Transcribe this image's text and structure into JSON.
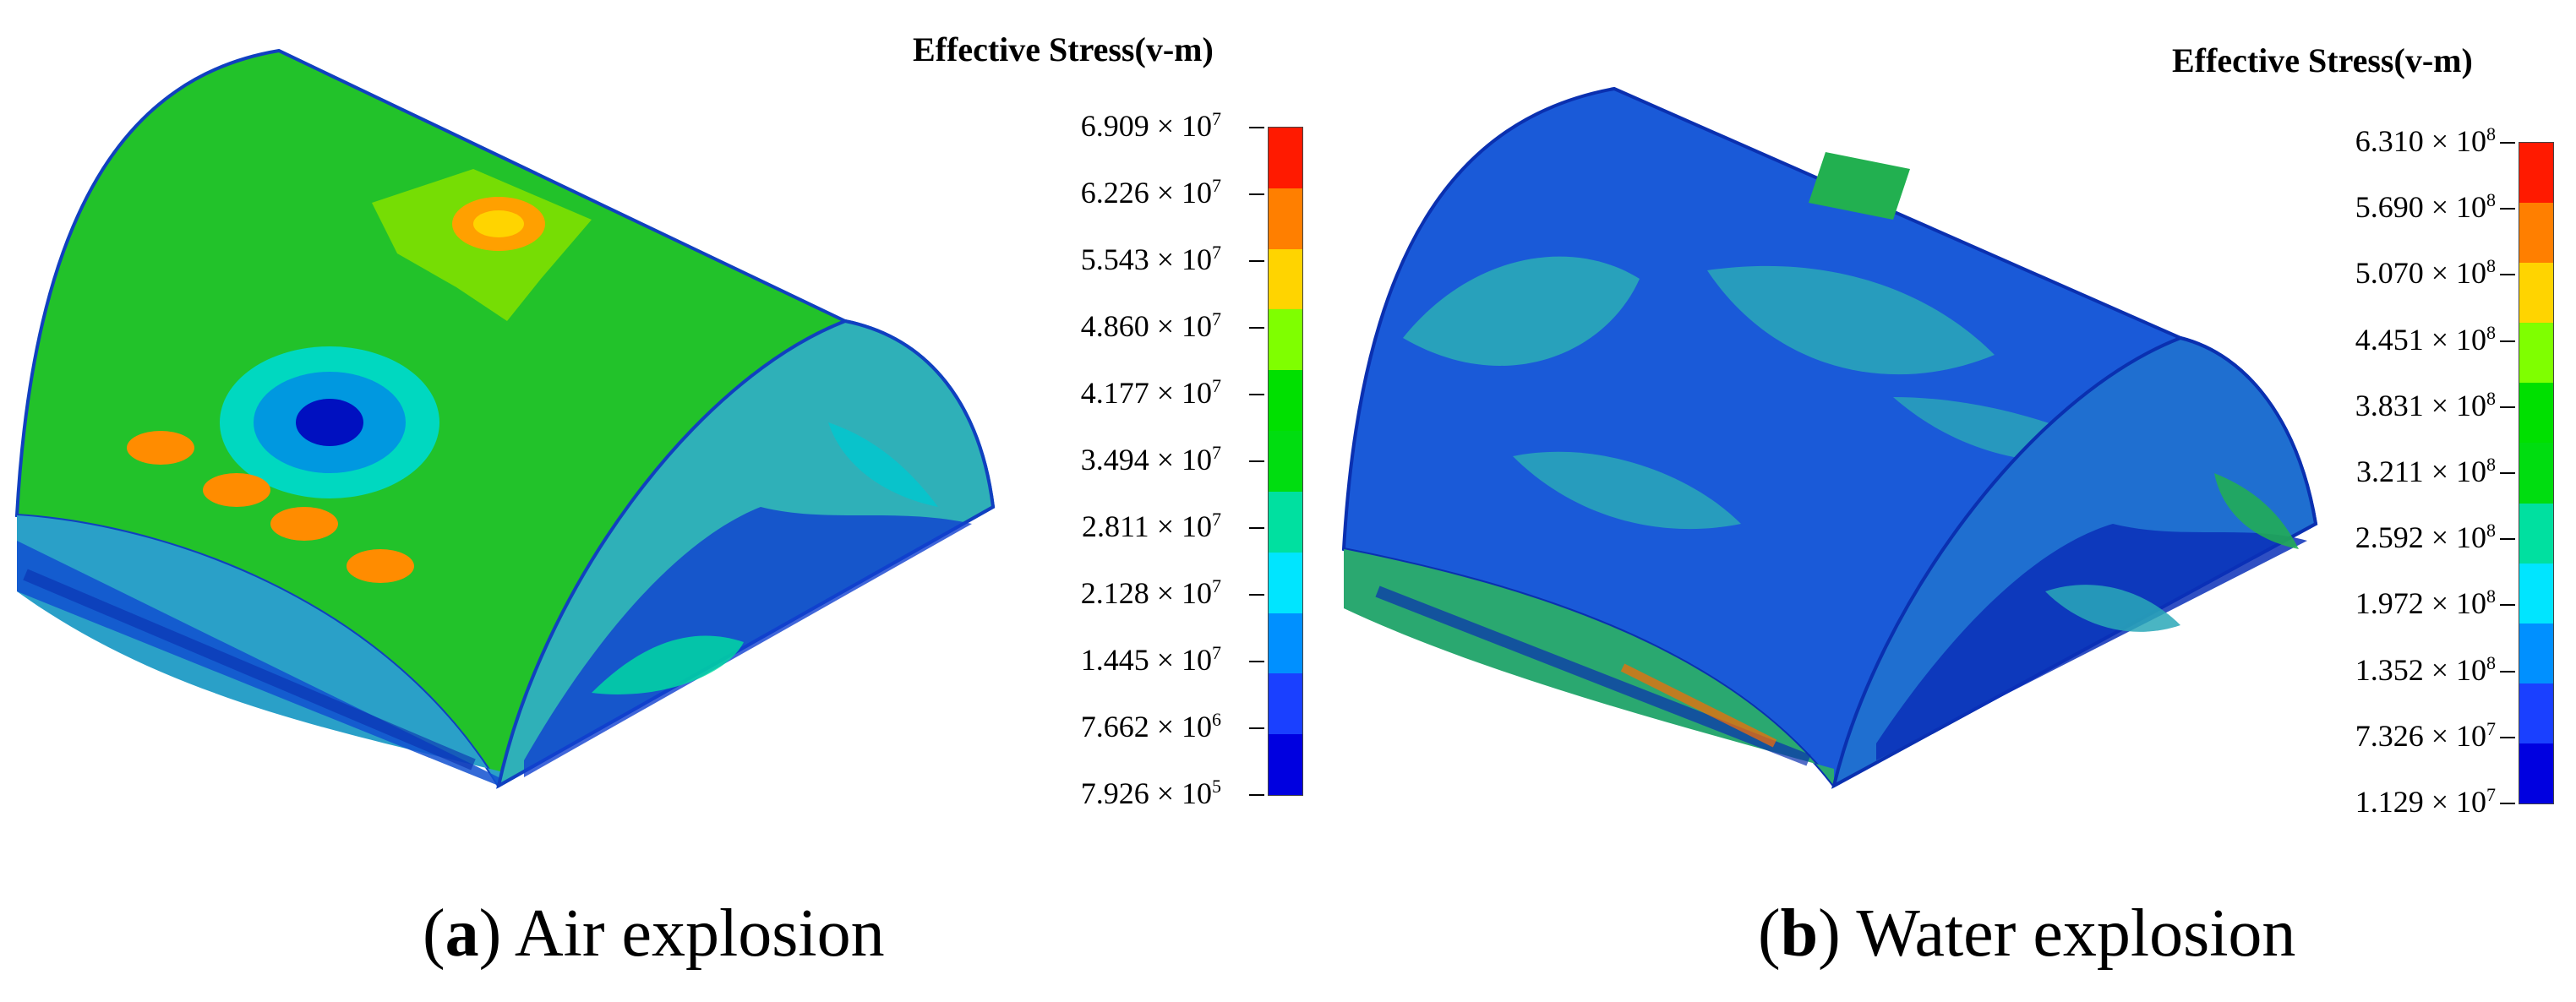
{
  "colorscale": [
    "#ff1a00",
    "#ff7f00",
    "#ffd400",
    "#7fff00",
    "#00e000",
    "#00dd10",
    "#00e0a0",
    "#00e5ff",
    "#0090ff",
    "#1a40ff",
    "#0000e0"
  ],
  "panels": [
    {
      "id": "a",
      "legend_title": "Effective Stress(v-m)",
      "ticks": [
        {
          "mantissa": "6.909",
          "times": "× 10",
          "exp": "7"
        },
        {
          "mantissa": "6.226",
          "times": "× 10",
          "exp": "7"
        },
        {
          "mantissa": "5.543",
          "times": "× 10",
          "exp": "7"
        },
        {
          "mantissa": "4.860",
          "times": "× 10",
          "exp": "7"
        },
        {
          "mantissa": "4.177",
          "times": "× 10",
          "exp": "7"
        },
        {
          "mantissa": "3.494",
          "times": "× 10",
          "exp": "7"
        },
        {
          "mantissa": "2.811",
          "times": "× 10",
          "exp": "7"
        },
        {
          "mantissa": "2.128",
          "times": "× 10",
          "exp": "7"
        },
        {
          "mantissa": "1.445",
          "times": "× 10",
          "exp": "7"
        },
        {
          "mantissa": "7.662",
          "times": "× 10",
          "exp": "6"
        },
        {
          "mantissa": "7.926",
          "times": "× 10",
          "exp": "5"
        }
      ],
      "caption_letter": "a",
      "caption_text": "Air explosion"
    },
    {
      "id": "b",
      "legend_title": "Effective Stress(v-m)",
      "ticks": [
        {
          "mantissa": "6.310",
          "times": "× 10",
          "exp": "8"
        },
        {
          "mantissa": "5.690",
          "times": "× 10",
          "exp": "8"
        },
        {
          "mantissa": "5.070",
          "times": "× 10",
          "exp": "8"
        },
        {
          "mantissa": "4.451",
          "times": "× 10",
          "exp": "8"
        },
        {
          "mantissa": "3.831",
          "times": "× 10",
          "exp": "8"
        },
        {
          "mantissa": "3.211",
          "times": "× 10",
          "exp": "8"
        },
        {
          "mantissa": "2.592",
          "times": "× 10",
          "exp": "8"
        },
        {
          "mantissa": "1.972",
          "times": "× 10",
          "exp": "8"
        },
        {
          "mantissa": "1.352",
          "times": "× 10",
          "exp": "8"
        },
        {
          "mantissa": "7.326",
          "times": "× 10",
          "exp": "7"
        },
        {
          "mantissa": "1.129",
          "times": "× 10",
          "exp": "7"
        }
      ],
      "caption_letter": "b",
      "caption_text": "Water explosion"
    }
  ]
}
